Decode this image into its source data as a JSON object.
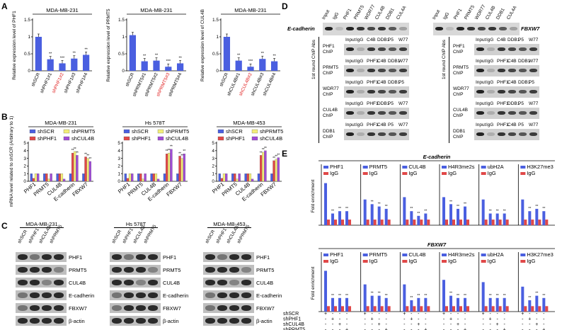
{
  "panels": {
    "A": "A",
    "B": "B",
    "C": "C",
    "D": "D",
    "E": "E"
  },
  "colors": {
    "blue": "#4a5fe0",
    "red": "#e04848",
    "yellow": "#f3ee78",
    "purple": "#a04cd6",
    "highlight": "#e02020"
  },
  "panelA": {
    "charts": [
      {
        "title": "MDA-MB-231",
        "ylabel": "Relative expression level of PHF1",
        "ylim": [
          0,
          1.5
        ],
        "yticks": [
          "0",
          "0.5",
          "1",
          "1.5"
        ],
        "categories": [
          "shSCR",
          "shPHF1#1",
          "shPHF1#2",
          "shPHF1#3",
          "shPHF1#4"
        ],
        "values": [
          1.0,
          0.34,
          0.22,
          0.36,
          0.47
        ],
        "sig": [
          "",
          "**",
          "***",
          "**",
          "**"
        ],
        "highlight_index": 2
      },
      {
        "title": "MDA-MB-231",
        "ylabel": "Relative expression level of PRMT5",
        "ylim": [
          0,
          1.5
        ],
        "yticks": [
          "0",
          "0.5",
          "1",
          "1.5"
        ],
        "categories": [
          "shSCR",
          "shPRMT5#1",
          "shPRMT5#2",
          "shPRMT5#3",
          "shPRMT5#4"
        ],
        "values": [
          1.05,
          0.28,
          0.3,
          0.12,
          0.22
        ],
        "sig": [
          "",
          "**",
          "**",
          "***",
          "**"
        ],
        "highlight_index": 3
      },
      {
        "title": "MDA-MB-231",
        "ylabel": "Relative expression level of CUL4B",
        "ylim": [
          0,
          1.5
        ],
        "yticks": [
          "0",
          "0.5",
          "1",
          "1.5"
        ],
        "categories": [
          "shSCR",
          "shCUL4B#1",
          "shCUL4B#2",
          "shCUL4B#3",
          "shCUL4B#4"
        ],
        "values": [
          1.0,
          0.3,
          0.12,
          0.35,
          0.28
        ],
        "sig": [
          "",
          "**",
          "***",
          "**",
          "**"
        ],
        "highlight_index": 2
      }
    ]
  },
  "panelB": {
    "ylabel": "mRNA level related to shSCR (Arbitrary to 1)",
    "legend": [
      "shSCR",
      "shPRMT5",
      "shPHF1",
      "shCUL4B"
    ],
    "categories": [
      "PHF1",
      "PRMT5",
      "CUL4B",
      "E-cadherin",
      "FBXW7"
    ],
    "yticks": [
      "0",
      "1",
      "2",
      "3",
      "4",
      "5"
    ],
    "charts": [
      {
        "title": "MDA-MB-231",
        "series": [
          {
            "name": "shSCR",
            "values": [
              1,
              1,
              1,
              1,
              1
            ]
          },
          {
            "name": "shPHF1",
            "values": [
              0.4,
              1.0,
              1.0,
              3.7,
              3.2
            ]
          },
          {
            "name": "shPRMT5",
            "values": [
              1.0,
              0.3,
              1.0,
              3.9,
              3.0
            ]
          },
          {
            "name": "shCUL4B",
            "values": [
              1.0,
              1.0,
              0.3,
              3.4,
              2.6
            ]
          }
        ]
      },
      {
        "title": "Hs 578T",
        "series": [
          {
            "name": "shSCR",
            "values": [
              1,
              1,
              1,
              1,
              1
            ]
          },
          {
            "name": "shPHF1",
            "values": [
              0.4,
              1.0,
              1.0,
              3.6,
              3.3
            ]
          },
          {
            "name": "shPRMT5",
            "values": [
              1.0,
              0.3,
              1.0,
              3.7,
              3.0
            ]
          },
          {
            "name": "shCUL4B",
            "values": [
              1.0,
              1.0,
              0.3,
              4.2,
              3.6
            ]
          }
        ]
      },
      {
        "title": "MDA-MB-453",
        "series": [
          {
            "name": "shSCR",
            "values": [
              1,
              1,
              1,
              1,
              1
            ]
          },
          {
            "name": "shPHF1",
            "values": [
              0.4,
              1.0,
              1.0,
              3.4,
              2.7
            ]
          },
          {
            "name": "shPRMT5",
            "values": [
              1.0,
              0.3,
              1.0,
              3.8,
              2.9
            ]
          },
          {
            "name": "shCUL4B",
            "values": [
              1.0,
              1.0,
              0.3,
              4.0,
              3.1
            ]
          }
        ]
      }
    ]
  },
  "panelC": {
    "cell_lines": [
      "MDA-MB-231",
      "Hs 578T",
      "MDA-MB-453"
    ],
    "lanes": [
      "shSCR",
      "shPHF1",
      "shCUL4B",
      "shPRMT5"
    ],
    "rows": [
      "PHF1",
      "PRMT5",
      "CUL4B",
      "E-cadherin",
      "FBXW7",
      "β-actin"
    ]
  },
  "panelD": {
    "left": {
      "promoter": "E-cadherin",
      "lanes": [
        "Input",
        "IgG",
        "PHF1",
        "PRMT5",
        "WDR77",
        "CUL4B",
        "DDB1",
        "CUL4A"
      ],
      "side_label": "1st round ChIP Abs",
      "rounds": [
        {
          "label": "PHF1 ChIP",
          "lanes": [
            "Input",
            "IgG",
            "C4B",
            "DDB1",
            "P5",
            "W77"
          ]
        },
        {
          "label": "PRMT5 ChIP",
          "lanes": [
            "Input",
            "IgG",
            "PHF1",
            "C4B",
            "DDB1",
            "W77"
          ]
        },
        {
          "label": "WDR77 ChIP",
          "lanes": [
            "Input",
            "IgG",
            "PHF1",
            "C4B",
            "DDB1",
            "P5"
          ]
        },
        {
          "label": "CUL4B ChIP",
          "lanes": [
            "Input",
            "IgG",
            "PHF1",
            "DDB1",
            "P5",
            "W77"
          ]
        },
        {
          "label": "DDB1 ChIP",
          "lanes": [
            "Input",
            "IgG",
            "PHF1",
            "C4B",
            "P5",
            "W77"
          ]
        }
      ]
    },
    "right": {
      "promoter": "FBXW7",
      "lanes": [
        "Input",
        "IgG",
        "PHF1",
        "PRMT5",
        "WDR77",
        "CUL4B",
        "DDB1",
        "CUL4A"
      ],
      "side_label": "1st round ChIP Abs",
      "rounds": [
        {
          "label": "PHF1 ChIP",
          "lanes": [
            "Input",
            "IgG",
            "C4B",
            "DDB1",
            "P5",
            "W77"
          ]
        },
        {
          "label": "PRMT5 ChIP",
          "lanes": [
            "Input",
            "IgG",
            "PHF1",
            "C4B",
            "DDB1",
            "W77"
          ]
        },
        {
          "label": "WDR77 ChIP",
          "lanes": [
            "Input",
            "IgG",
            "PHF1",
            "C4B",
            "DDB1",
            "P5"
          ]
        },
        {
          "label": "CUL4B ChIP",
          "lanes": [
            "Input",
            "IgG",
            "PHF1",
            "DDB1",
            "P5",
            "W77"
          ]
        },
        {
          "label": "DDB1 ChIP",
          "lanes": [
            "Input",
            "IgG",
            "PHF1",
            "C4B",
            "P5",
            "W77"
          ]
        }
      ]
    }
  },
  "panelE": {
    "ylabel": "Fold enrichment",
    "sections": [
      {
        "title": "E-cadherin",
        "antibodies": [
          "PHF1",
          "PRMT5",
          "CUL4B",
          "H4R3me2s",
          "ubH2A",
          "H3K27me3"
        ],
        "ab_values": [
          [
            0.9,
            0.25,
            0.3,
            0.3
          ],
          [
            0.55,
            0.45,
            0.4,
            0.35
          ],
          [
            0.6,
            0.3,
            0.2,
            0.25
          ],
          [
            0.6,
            0.45,
            0.35,
            0.4
          ],
          [
            0.55,
            0.25,
            0.25,
            0.25
          ],
          [
            0.55,
            0.3,
            0.35,
            0.3
          ]
        ],
        "igg_values": [
          0.12,
          0.12,
          0.12,
          0.12,
          0.12,
          0.12
        ]
      },
      {
        "title": "FBXW7",
        "antibodies": [
          "PHF1",
          "PRMT5",
          "CUL4B",
          "H4R3me2s",
          "ubH2A",
          "H3K27me3"
        ],
        "ab_values": [
          [
            0.9,
            0.3,
            0.3,
            0.3
          ],
          [
            0.6,
            0.35,
            0.35,
            0.3
          ],
          [
            0.6,
            0.25,
            0.3,
            0.3
          ],
          [
            0.7,
            0.35,
            0.3,
            0.3
          ],
          [
            0.65,
            0.3,
            0.3,
            0.3
          ],
          [
            0.55,
            0.25,
            0.35,
            0.3
          ]
        ],
        "igg_values": [
          0.12,
          0.12,
          0.12,
          0.12,
          0.12,
          0.12
        ]
      }
    ],
    "legend_igg": "IgG",
    "sig": "**",
    "conditions": [
      {
        "label": "shSCR",
        "marks": [
          "+",
          "-",
          "-",
          "-"
        ]
      },
      {
        "label": "shPHF1",
        "marks": [
          "-",
          "+",
          "-",
          "-"
        ]
      },
      {
        "label": "shCUL4B",
        "marks": [
          "-",
          "-",
          "+",
          "-"
        ]
      },
      {
        "label": "shPRMT5",
        "marks": [
          "-",
          "-",
          "-",
          "+"
        ]
      }
    ]
  }
}
